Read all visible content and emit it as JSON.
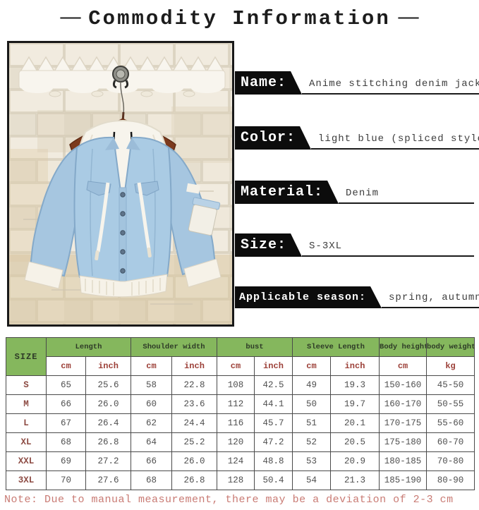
{
  "header": {
    "dash_left": "—",
    "title": "Commodity Information",
    "dash_right": "—"
  },
  "attributes": [
    {
      "label": "Name:",
      "value": "Anime stitching denim jacket"
    },
    {
      "label": "Color:",
      "value": "light blue (spliced style)"
    },
    {
      "label": "Material:",
      "value": "Denim"
    },
    {
      "label": "Size:",
      "value": "S-3XL"
    },
    {
      "label": "Applicable season:",
      "value": "spring, autumn, winter"
    }
  ],
  "table": {
    "corner_header": "SIZE",
    "group_headers": [
      {
        "label": "Length",
        "span": 2
      },
      {
        "label": "Shoulder width",
        "span": 2
      },
      {
        "label": "bust",
        "span": 2
      },
      {
        "label": "Sleeve Length",
        "span": 2
      },
      {
        "label": "Body height",
        "span": 1
      },
      {
        "label": "body weight",
        "span": 1
      }
    ],
    "unit_headers": [
      "cm",
      "inch",
      "cm",
      "inch",
      "cm",
      "inch",
      "cm",
      "inch",
      "cm",
      "kg"
    ],
    "rows": [
      {
        "size": "S",
        "values": [
          "65",
          "25.6",
          "58",
          "22.8",
          "108",
          "42.5",
          "49",
          "19.3",
          "150-160",
          "45-50"
        ]
      },
      {
        "size": "M",
        "values": [
          "66",
          "26.0",
          "60",
          "23.6",
          "112",
          "44.1",
          "50",
          "19.7",
          "160-170",
          "50-55"
        ]
      },
      {
        "size": "L",
        "values": [
          "67",
          "26.4",
          "62",
          "24.4",
          "116",
          "45.7",
          "51",
          "20.1",
          "170-175",
          "55-60"
        ]
      },
      {
        "size": "XL",
        "values": [
          "68",
          "26.8",
          "64",
          "25.2",
          "120",
          "47.2",
          "52",
          "20.5",
          "175-180",
          "60-70"
        ]
      },
      {
        "size": "XXL",
        "values": [
          "69",
          "27.2",
          "66",
          "26.0",
          "124",
          "48.8",
          "53",
          "20.9",
          "180-185",
          "70-80"
        ]
      },
      {
        "size": "3XL",
        "values": [
          "70",
          "27.6",
          "68",
          "26.8",
          "128",
          "50.4",
          "54",
          "21.3",
          "185-190",
          "80-90"
        ]
      }
    ]
  },
  "note": "Note: Due to manual measurement, there may be a deviation of 2-3 cm",
  "colors": {
    "table_header_green": "#85b75d",
    "unit_text_maroon": "#9c4038",
    "size_text_maroon": "#8c4a42",
    "note_red": "#c97b74",
    "label_background": "#0c0c0c",
    "jacket_light_blue": "#a9cbe4",
    "hood_white": "#f7f4ec",
    "hanger_brown": "#7c3a1d"
  }
}
